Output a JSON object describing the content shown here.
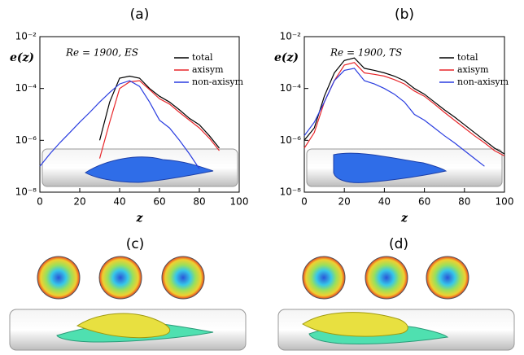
{
  "chart_data": [
    {
      "type": "line",
      "title": "(a)",
      "annotation": "Re = 1900, ES",
      "xlabel": "z",
      "ylabel": "e(z)",
      "x": [
        0,
        5,
        10,
        15,
        20,
        25,
        30,
        35,
        40,
        45,
        50,
        55,
        60,
        65,
        70,
        75,
        80,
        85,
        90,
        95,
        100
      ],
      "series": [
        {
          "name": "total",
          "color": "#000000",
          "values": [
            null,
            null,
            null,
            null,
            null,
            null,
            1e-06,
            3e-05,
            0.00025,
            0.0003,
            0.00025,
            0.0001,
            5e-05,
            3e-05,
            1.5e-05,
            7e-06,
            4e-06,
            1.5e-06,
            5e-07,
            null,
            null
          ]
        },
        {
          "name": "axisym",
          "color": "#e8262a",
          "values": [
            null,
            null,
            null,
            null,
            null,
            null,
            2e-07,
            5e-06,
            0.0001,
            0.00018,
            0.0002,
            9e-05,
            4e-05,
            2.5e-05,
            1.2e-05,
            6e-06,
            3e-06,
            1.2e-06,
            4e-07,
            null,
            null
          ]
        },
        {
          "name": "non-axisym",
          "color": "#2a3de0",
          "values": [
            1e-07,
            3e-07,
            8e-07,
            2e-06,
            5e-06,
            1.2e-05,
            3e-05,
            7e-05,
            0.00015,
            0.0002,
            0.00012,
            3e-05,
            6e-06,
            3e-06,
            1e-06,
            3e-07,
            8e-08,
            null,
            null,
            null,
            null
          ]
        }
      ],
      "xlim": [
        0,
        100
      ],
      "xticks": [
        0,
        20,
        40,
        60,
        80,
        100
      ],
      "ylim": [
        1e-08,
        0.01
      ],
      "log_scale": true,
      "legend": "upper right",
      "yticks": [
        {
          "value": 1e-08,
          "label": "10⁻⁸"
        },
        {
          "value": 1e-06,
          "label": "10⁻⁶"
        },
        {
          "value": 0.0001,
          "label": "10⁻⁴"
        },
        {
          "value": 0.01,
          "label": "10⁻²"
        }
      ]
    },
    {
      "type": "line",
      "title": "(b)",
      "annotation": "Re = 1900, TS",
      "xlabel": "z",
      "ylabel": "e(z)",
      "x": [
        0,
        5,
        10,
        15,
        20,
        25,
        30,
        35,
        40,
        45,
        50,
        55,
        60,
        65,
        70,
        75,
        80,
        85,
        90,
        95,
        100
      ],
      "series": [
        {
          "name": "total",
          "color": "#000000",
          "values": [
            1e-06,
            3e-06,
            5e-05,
            0.0004,
            0.0012,
            0.0015,
            0.0006,
            0.0005,
            0.0004,
            0.0003,
            0.0002,
            0.0001,
            6e-05,
            3e-05,
            1.5e-05,
            8e-06,
            4e-06,
            2e-06,
            1e-06,
            5e-07,
            3e-07
          ]
        },
        {
          "name": "axisym",
          "color": "#e8262a",
          "values": [
            5e-07,
            2e-06,
            3e-05,
            0.0002,
            0.0008,
            0.001,
            0.0004,
            0.00035,
            0.0003,
            0.00022,
            0.00015,
            8e-05,
            5e-05,
            2.5e-05,
            1.2e-05,
            6e-06,
            3e-06,
            1.5e-06,
            8e-07,
            4e-07,
            2.5e-07
          ]
        },
        {
          "name": "non-axisym",
          "color": "#2a3de0",
          "values": [
            1.5e-06,
            5e-06,
            3e-05,
            0.0002,
            0.0005,
            0.0006,
            0.0002,
            0.00015,
            0.0001,
            6e-05,
            3e-05,
            1e-05,
            6e-06,
            3e-06,
            1.5e-06,
            8e-07,
            4e-07,
            2e-07,
            1e-07,
            null,
            null
          ]
        }
      ],
      "xlim": [
        0,
        100
      ],
      "xticks": [
        0,
        20,
        40,
        60,
        80,
        100
      ],
      "ylim": [
        1e-08,
        0.01
      ],
      "log_scale": true,
      "legend": "upper right",
      "yticks": [
        {
          "value": 1e-08,
          "label": "10⁻⁸"
        },
        {
          "value": 1e-06,
          "label": "10⁻⁶"
        },
        {
          "value": 0.0001,
          "label": "10⁻⁴"
        },
        {
          "value": 0.01,
          "label": "10⁻²"
        }
      ]
    }
  ],
  "figure": {
    "panel_labels": [
      "(c)",
      "(d)"
    ]
  }
}
